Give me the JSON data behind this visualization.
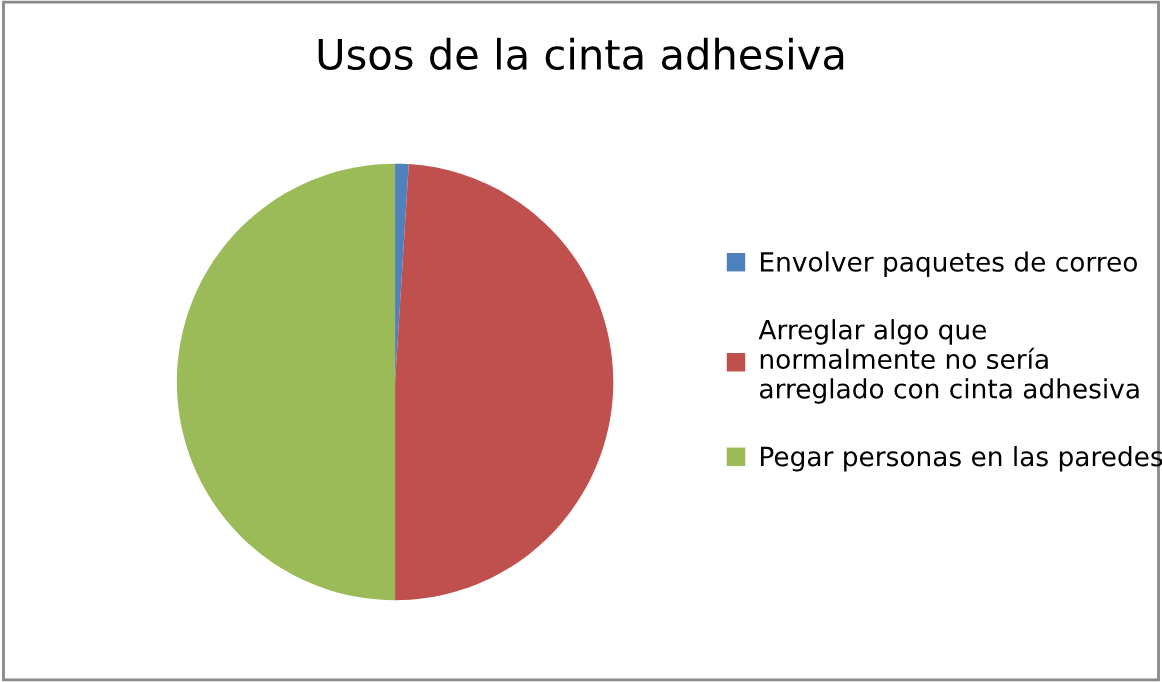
{
  "chart_data": {
    "type": "pie",
    "title": "Usos de la cinta adhesiva",
    "categories": [
      "Envolver paquetes de correo",
      "Arreglar algo que\nnormalmente no sería\narreglado con cinta adhesiva",
      "Pegar personas en las paredes"
    ],
    "values": [
      1,
      49,
      50
    ],
    "colors": [
      "#4f81bd",
      "#c0504d",
      "#9bbb59"
    ],
    "legend": "right"
  }
}
